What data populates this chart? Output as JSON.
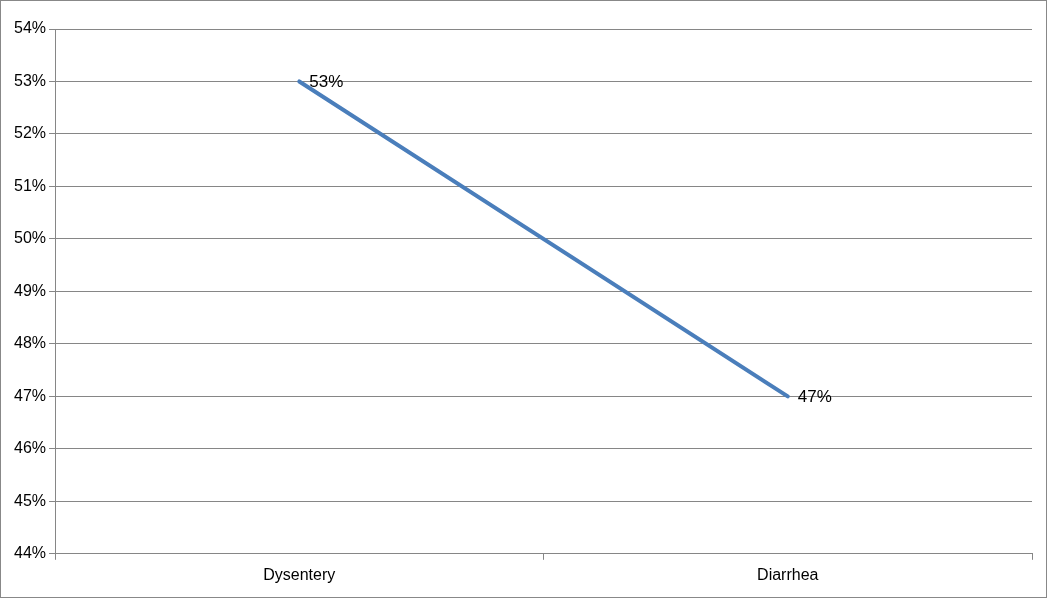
{
  "chart_data": {
    "type": "line",
    "categories": [
      "Dysentery",
      "Diarrhea"
    ],
    "series": [
      {
        "color": "#4a7ebb",
        "values": [
          53,
          47
        ],
        "value_labels": [
          "53%",
          "47%"
        ]
      }
    ],
    "ylim": [
      44,
      54
    ],
    "yticks": [
      {
        "value": 44,
        "label": "44%"
      },
      {
        "value": 45,
        "label": "45%"
      },
      {
        "value": 46,
        "label": "46%"
      },
      {
        "value": 47,
        "label": "47%"
      },
      {
        "value": 48,
        "label": "48%"
      },
      {
        "value": 49,
        "label": "49%"
      },
      {
        "value": 50,
        "label": "50%"
      },
      {
        "value": 51,
        "label": "51%"
      },
      {
        "value": 52,
        "label": "52%"
      },
      {
        "value": 53,
        "label": "53%"
      },
      {
        "value": 54,
        "label": "54%"
      }
    ],
    "grid": "y",
    "legend": false,
    "marker": "none",
    "line_style": "solid"
  }
}
